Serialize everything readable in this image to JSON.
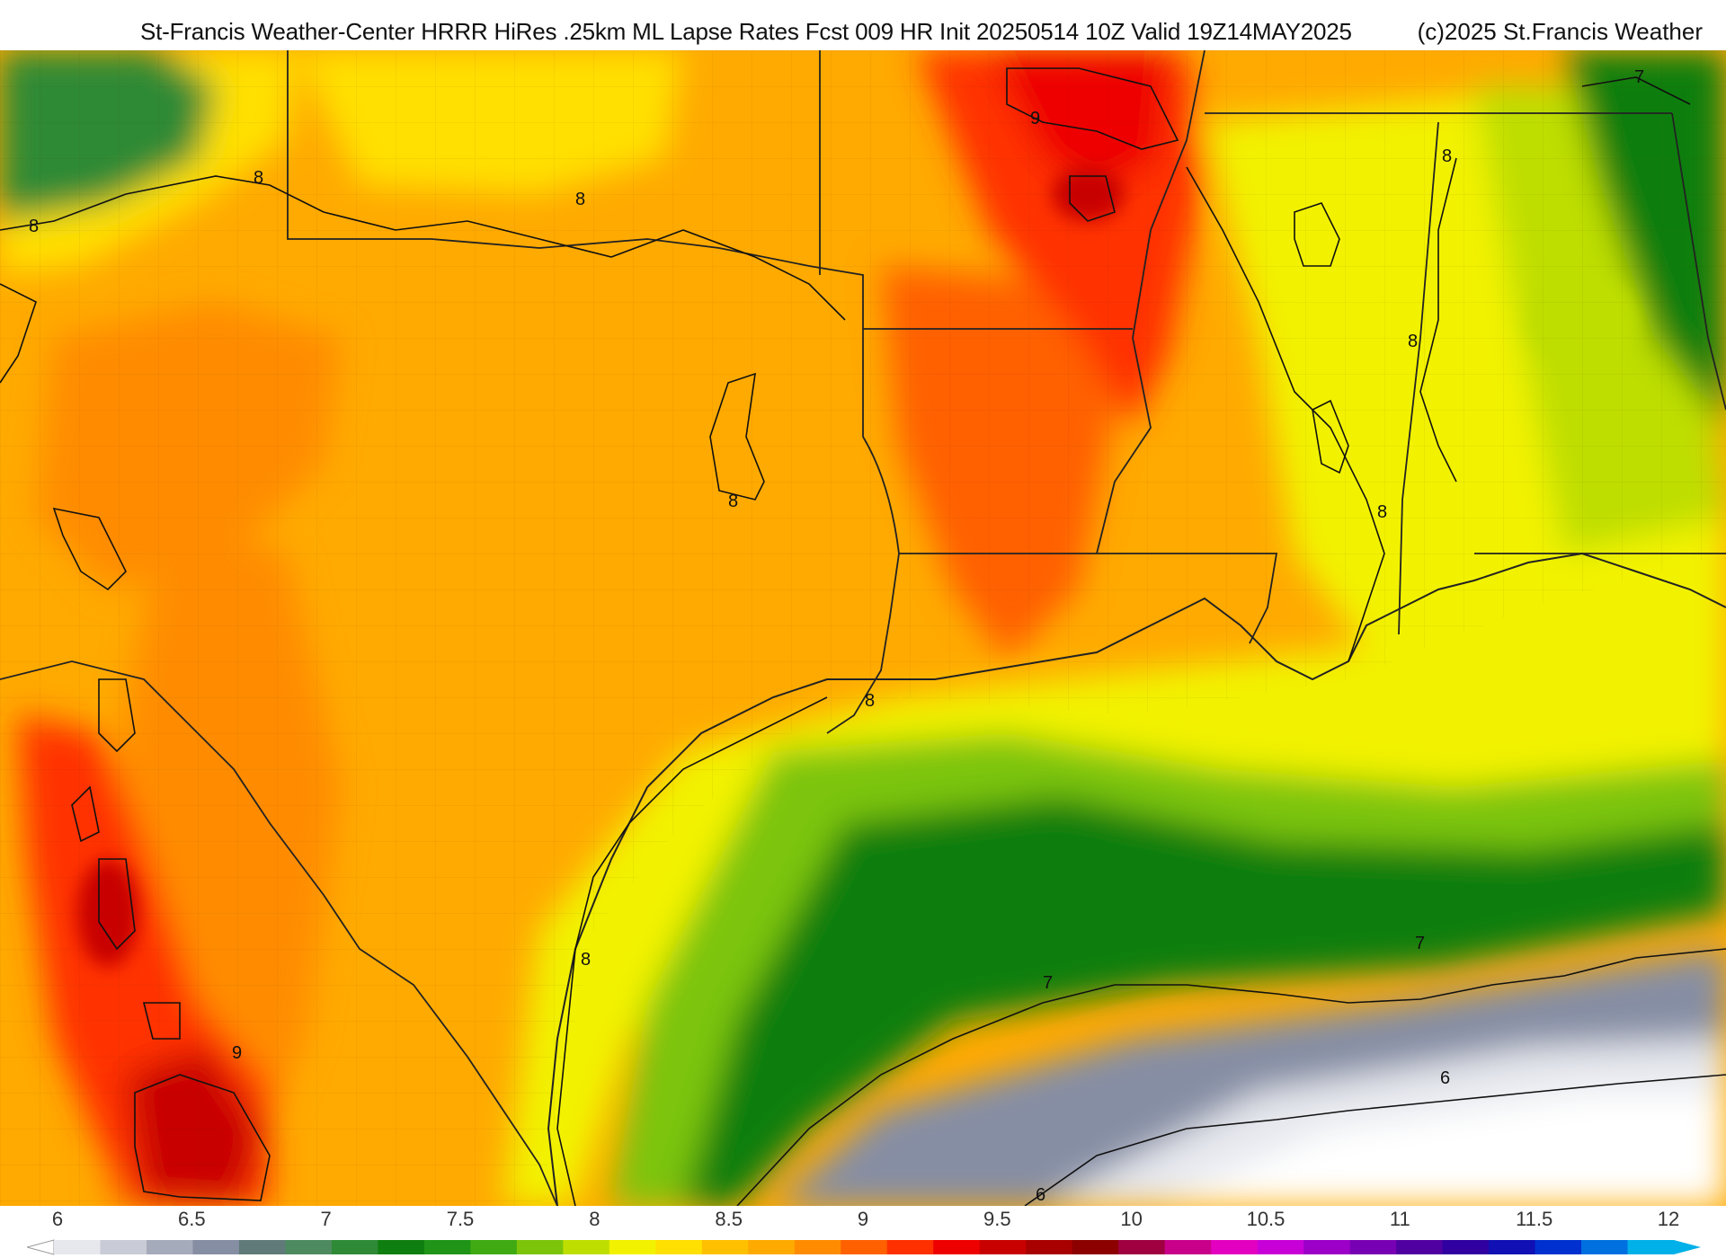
{
  "header": {
    "title": "St-Francis Weather-Center HRRR HiRes .25km ML Lapse Rates  Fcst 009 HR Init 20250514 10Z  Valid 19Z14MAY2025",
    "credit": "(c)2025 St.Francis Weather"
  },
  "map": {
    "field": "ML Lapse Rates",
    "contour_labels": [
      {
        "text": "8",
        "near": "north Texas panhandle"
      },
      {
        "text": "8",
        "near": "Oklahoma border"
      },
      {
        "text": "8",
        "near": "west edge"
      },
      {
        "text": "9",
        "near": "Missouri"
      },
      {
        "text": "8",
        "near": "Mississippi"
      },
      {
        "text": "7",
        "near": "northeast corner"
      },
      {
        "text": "8",
        "near": "Alabama"
      },
      {
        "text": "8",
        "near": "north-central Texas"
      },
      {
        "text": "8",
        "near": "Louisiana"
      },
      {
        "text": "8",
        "near": "Texas coast"
      },
      {
        "text": "8",
        "near": "south Texas coast"
      },
      {
        "text": "9",
        "near": "northern Mexico"
      },
      {
        "text": "7",
        "near": "Gulf of Mexico east"
      },
      {
        "text": "7",
        "near": "Gulf of Mexico central"
      },
      {
        "text": "6",
        "near": "Gulf of Mexico south"
      },
      {
        "text": "6",
        "near": "Gulf of Mexico southwest"
      }
    ]
  },
  "legend": {
    "ticks": [
      "6",
      "6.5",
      "7",
      "7.5",
      "8",
      "8.5",
      "9",
      "9.5",
      "10",
      "10.5",
      "11",
      "11.5",
      "12"
    ],
    "colors": [
      "#e6e8ee",
      "#c9ccd6",
      "#a6abbb",
      "#868ea4",
      "#5f7a78",
      "#4e8a60",
      "#2e8a36",
      "#0e7e10",
      "#1f9417",
      "#3faa12",
      "#7cc40a",
      "#bede00",
      "#f2f200",
      "#ffe000",
      "#ffc000",
      "#ffaa00",
      "#ff8c00",
      "#ff6000",
      "#ff3000",
      "#ee0000",
      "#c80000",
      "#a80000",
      "#8c0000",
      "#a00040",
      "#c8008a",
      "#e400c0",
      "#c800d8",
      "#9c00c8",
      "#7800b4",
      "#5000a0",
      "#3000a0",
      "#1010b4",
      "#0030d0",
      "#0070e0",
      "#00b0e8"
    ]
  }
}
